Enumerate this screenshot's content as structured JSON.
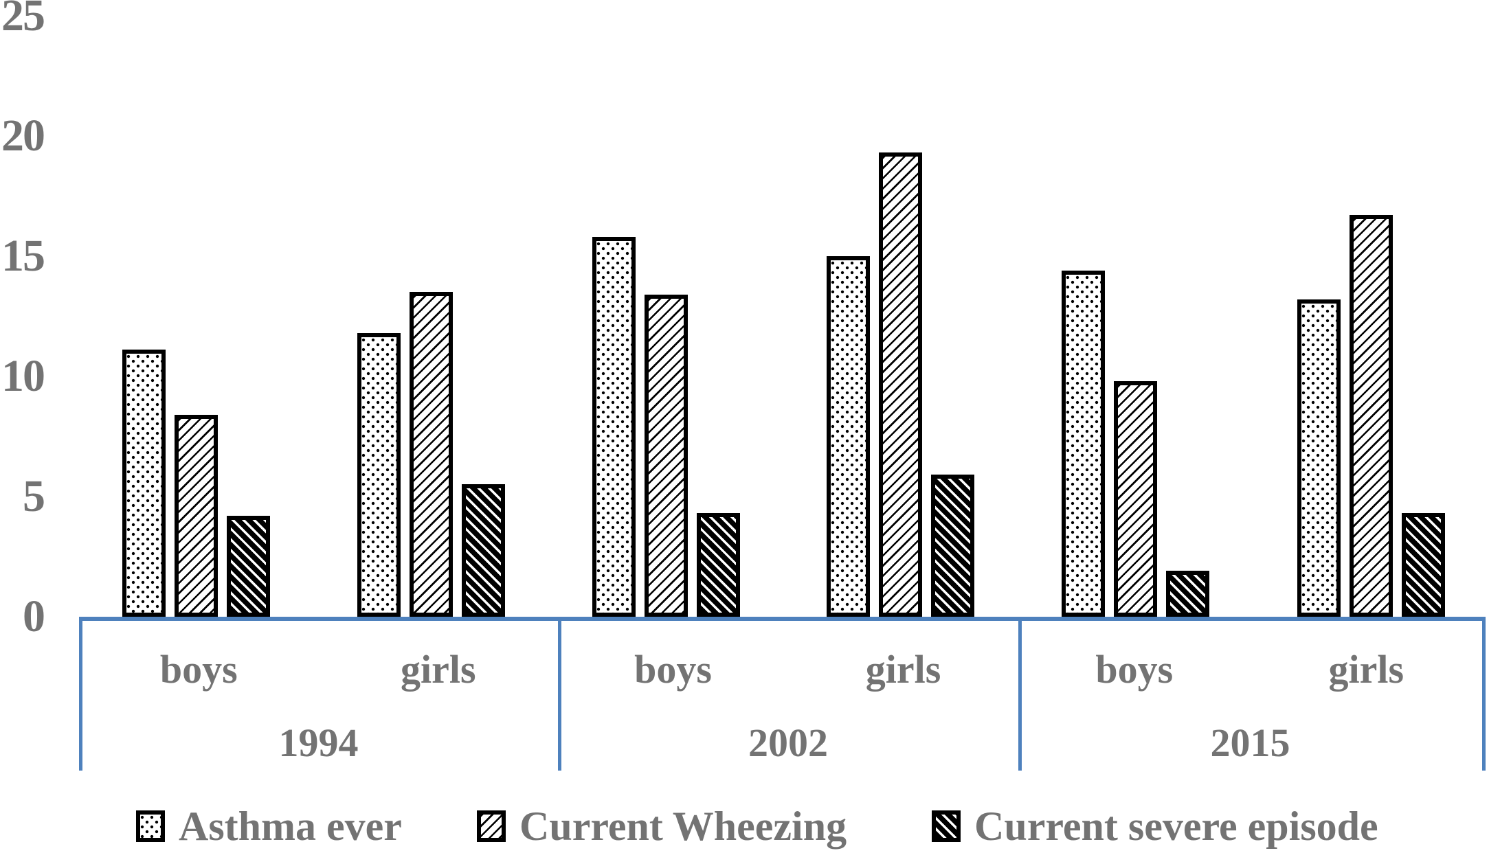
{
  "chart_data": {
    "type": "bar",
    "title": "",
    "grid": false,
    "legend_position": "bottom",
    "categories": [
      "1994 boys",
      "1994 girls",
      "2002 boys",
      "2002 girls",
      "2015 boys",
      "2015 girls"
    ],
    "y_axis": {
      "min": 0,
      "max": 25,
      "step": 5,
      "tick_values": [
        0,
        5,
        10,
        15,
        20,
        25
      ],
      "tick_labels": [
        "0",
        "5",
        "10",
        "15",
        "20",
        "25"
      ]
    },
    "x_axis": {
      "groups": [
        {
          "label": "1994",
          "subgroups": [
            "boys",
            "girls"
          ]
        },
        {
          "label": "2002",
          "subgroups": [
            "boys",
            "girls"
          ]
        },
        {
          "label": "2015",
          "subgroups": [
            "boys",
            "girls"
          ]
        }
      ]
    },
    "series": [
      {
        "name": "Asthma ever",
        "pattern": "dotted-grid",
        "values": [
          11.1,
          11.8,
          15.8,
          15.0,
          14.4,
          13.2
        ]
      },
      {
        "name": "Current Wheezing",
        "pattern": "diagonal-hatch-light",
        "values": [
          8.4,
          13.5,
          13.4,
          19.3,
          9.8,
          16.7
        ]
      },
      {
        "name": "Current severe episode",
        "pattern": "diagonal-hatch-dark",
        "values": [
          4.2,
          5.5,
          4.3,
          5.9,
          1.9,
          4.3
        ]
      }
    ],
    "colors": {
      "axis_line": "#4E81BD",
      "text": "#737373",
      "bar_border": "#000000",
      "bar_fill": "#FFFFFF"
    }
  }
}
